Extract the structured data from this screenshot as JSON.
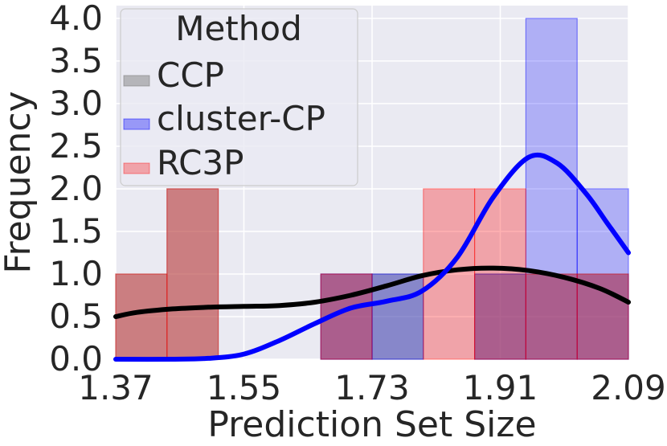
{
  "chart_data": {
    "type": "histogram",
    "xlabel": "Prediction Set Size",
    "ylabel": "Frequency",
    "xlim": [
      1.37,
      2.09
    ],
    "ylim": [
      0,
      4.15
    ],
    "xticks": [
      "1.37",
      "1.55",
      "1.73",
      "1.91",
      "2.09"
    ],
    "yticks": [
      "0.0",
      "0.5",
      "1.0",
      "1.5",
      "2.0",
      "2.5",
      "3.0",
      "3.5",
      "4.0"
    ],
    "grid": true,
    "background": "#eaeaf2",
    "legend": {
      "title": "Method",
      "position": "top-left",
      "entries": [
        "CCP",
        "cluster-CP",
        "RC3P"
      ]
    },
    "series": [
      {
        "name": "CCP",
        "color": "#808080",
        "bin_edges": [
          1.37,
          1.442,
          1.514,
          1.586,
          1.658,
          1.73,
          1.802,
          1.874,
          1.946,
          2.018,
          2.09
        ],
        "counts": [
          1,
          2,
          0,
          0,
          1,
          1,
          0,
          1,
          1,
          1
        ],
        "kde": [
          [
            1.37,
            0.5
          ],
          [
            1.4,
            0.55
          ],
          [
            1.45,
            0.59
          ],
          [
            1.5,
            0.61
          ],
          [
            1.55,
            0.62
          ],
          [
            1.6,
            0.63
          ],
          [
            1.65,
            0.67
          ],
          [
            1.7,
            0.75
          ],
          [
            1.75,
            0.86
          ],
          [
            1.8,
            0.98
          ],
          [
            1.85,
            1.05
          ],
          [
            1.9,
            1.07
          ],
          [
            1.95,
            1.04
          ],
          [
            2.0,
            0.96
          ],
          [
            2.05,
            0.83
          ],
          [
            2.09,
            0.67
          ]
        ]
      },
      {
        "name": "cluster-CP",
        "color": "#0000ff",
        "bin_edges": [
          1.37,
          1.442,
          1.514,
          1.586,
          1.658,
          1.73,
          1.802,
          1.874,
          1.946,
          2.018,
          2.09
        ],
        "counts": [
          0,
          0,
          0,
          0,
          1,
          1,
          0,
          1,
          4,
          2
        ],
        "kde": [
          [
            1.37,
            0.0
          ],
          [
            1.45,
            0.0
          ],
          [
            1.5,
            0.01
          ],
          [
            1.55,
            0.06
          ],
          [
            1.6,
            0.22
          ],
          [
            1.65,
            0.42
          ],
          [
            1.7,
            0.6
          ],
          [
            1.75,
            0.68
          ],
          [
            1.8,
            0.8
          ],
          [
            1.85,
            1.2
          ],
          [
            1.9,
            1.9
          ],
          [
            1.95,
            2.37
          ],
          [
            1.99,
            2.3
          ],
          [
            2.03,
            1.95
          ],
          [
            2.06,
            1.6
          ],
          [
            2.09,
            1.25
          ]
        ]
      },
      {
        "name": "RC3P",
        "color": "#ff0000",
        "bin_edges": [
          1.37,
          1.442,
          1.514,
          1.586,
          1.658,
          1.73,
          1.802,
          1.874,
          1.946,
          2.018,
          2.09
        ],
        "counts": [
          1,
          2,
          0,
          0,
          1,
          0,
          2,
          2,
          1,
          1
        ]
      }
    ]
  }
}
